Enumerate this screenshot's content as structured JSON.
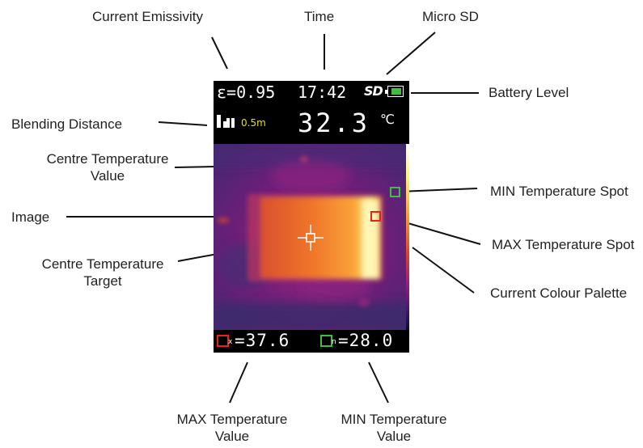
{
  "labels": {
    "current_emissivity": "Current Emissivity",
    "time": "Time",
    "micro_sd": "Micro SD",
    "battery_level": "Battery Level",
    "blending_distance": "Blending Distance",
    "centre_temperature_value": [
      "Centre Temperature",
      "Value"
    ],
    "image": "Image",
    "min_temperature_spot": "MIN Temperature Spot",
    "max_temperature_spot": "MAX Temperature Spot",
    "centre_temperature_target": [
      "Centre Temperature",
      "Target"
    ],
    "current_colour_palette": "Current Colour Palette",
    "max_temperature_value": [
      "MAX Temperature",
      "Value"
    ],
    "min_temperature_value": [
      "MIN Temperature",
      "Value"
    ]
  },
  "screen": {
    "emissivity": "ε=0.95",
    "time": "17:42",
    "sd_icon": "SD",
    "distance": "0.5m",
    "centre_temp": "32.3",
    "temp_unit": "℃",
    "max_marker": "x",
    "max_value": "=37.6",
    "min_marker": "n",
    "min_value": "=28.0"
  },
  "colors": {
    "max_spot": "#e8231c",
    "min_spot": "#3fbf3f",
    "distance_text": "#e8e000",
    "battery_fill": "#3fbf3f"
  },
  "icons": {
    "battery": "battery-icon",
    "sd": "sd-card-icon",
    "distance": "distance-bars-icon",
    "crosshair": "crosshair-icon"
  }
}
